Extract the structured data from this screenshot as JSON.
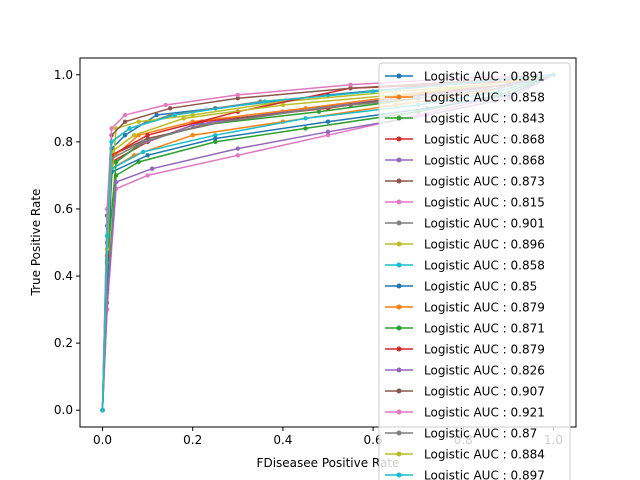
{
  "chart_data": {
    "type": "line",
    "title": "",
    "xlabel": "FDiseasee Positive Rate",
    "ylabel": "True Positive Rate",
    "xlim": [
      -0.05,
      1.05
    ],
    "ylim": [
      -0.05,
      1.05
    ],
    "x_ticks": [
      "0.0",
      "0.2",
      "0.4",
      "0.6",
      "0.8",
      "1.0"
    ],
    "y_ticks": [
      "0.0",
      "0.2",
      "0.4",
      "0.6",
      "0.8",
      "1.0"
    ],
    "grid": false,
    "legend_position": "right (overflowing bottom)",
    "series": [
      {
        "name": "Logistic AUC : 0.891",
        "color": "#1f77b4",
        "points": [
          [
            0,
            0
          ],
          [
            0.01,
            0.45
          ],
          [
            0.02,
            0.78
          ],
          [
            0.05,
            0.82
          ],
          [
            0.12,
            0.88
          ],
          [
            0.25,
            0.9
          ],
          [
            0.5,
            0.94
          ],
          [
            0.75,
            0.97
          ],
          [
            1,
            1
          ]
        ]
      },
      {
        "name": "Logistic AUC : 0.858",
        "color": "#ff7f0e",
        "points": [
          [
            0,
            0
          ],
          [
            0.01,
            0.3
          ],
          [
            0.02,
            0.72
          ],
          [
            0.07,
            0.76
          ],
          [
            0.2,
            0.82
          ],
          [
            0.4,
            0.86
          ],
          [
            0.65,
            0.91
          ],
          [
            0.85,
            0.95
          ],
          [
            1,
            1
          ]
        ]
      },
      {
        "name": "Logistic AUC : 0.843",
        "color": "#2ca02c",
        "points": [
          [
            0,
            0
          ],
          [
            0.01,
            0.35
          ],
          [
            0.03,
            0.7
          ],
          [
            0.08,
            0.74
          ],
          [
            0.25,
            0.8
          ],
          [
            0.45,
            0.84
          ],
          [
            0.7,
            0.89
          ],
          [
            0.88,
            0.94
          ],
          [
            1,
            1
          ]
        ]
      },
      {
        "name": "Logistic AUC : 0.868",
        "color": "#d62728",
        "points": [
          [
            0,
            0
          ],
          [
            0.01,
            0.4
          ],
          [
            0.02,
            0.74
          ],
          [
            0.1,
            0.8
          ],
          [
            0.22,
            0.86
          ],
          [
            0.5,
            0.9
          ],
          [
            0.7,
            0.94
          ],
          [
            0.9,
            0.97
          ],
          [
            1,
            1
          ]
        ]
      },
      {
        "name": "Logistic AUC : 0.868",
        "color": "#9467bd",
        "points": [
          [
            0,
            0
          ],
          [
            0.01,
            0.42
          ],
          [
            0.02,
            0.73
          ],
          [
            0.08,
            0.79
          ],
          [
            0.2,
            0.85
          ],
          [
            0.4,
            0.89
          ],
          [
            0.65,
            0.93
          ],
          [
            0.85,
            0.96
          ],
          [
            1,
            1
          ]
        ]
      },
      {
        "name": "Logistic AUC : 0.873",
        "color": "#8c564b",
        "points": [
          [
            0,
            0
          ],
          [
            0.01,
            0.5
          ],
          [
            0.02,
            0.76
          ],
          [
            0.1,
            0.81
          ],
          [
            0.3,
            0.87
          ],
          [
            0.55,
            0.91
          ],
          [
            0.75,
            0.95
          ],
          [
            0.9,
            0.97
          ],
          [
            1,
            1
          ]
        ]
      },
      {
        "name": "Logistic AUC : 0.815",
        "color": "#e377c2",
        "points": [
          [
            0,
            0
          ],
          [
            0.01,
            0.3
          ],
          [
            0.03,
            0.66
          ],
          [
            0.1,
            0.7
          ],
          [
            0.3,
            0.76
          ],
          [
            0.5,
            0.82
          ],
          [
            0.7,
            0.88
          ],
          [
            0.9,
            0.94
          ],
          [
            1,
            1
          ]
        ]
      },
      {
        "name": "Logistic AUC : 0.901",
        "color": "#7f7f7f",
        "points": [
          [
            0,
            0
          ],
          [
            0.01,
            0.55
          ],
          [
            0.02,
            0.8
          ],
          [
            0.06,
            0.84
          ],
          [
            0.15,
            0.88
          ],
          [
            0.35,
            0.92
          ],
          [
            0.6,
            0.95
          ],
          [
            0.85,
            0.98
          ],
          [
            1,
            1
          ]
        ]
      },
      {
        "name": "Logistic AUC : 0.896",
        "color": "#bcbd22",
        "points": [
          [
            0,
            0
          ],
          [
            0.01,
            0.52
          ],
          [
            0.03,
            0.84
          ],
          [
            0.08,
            0.86
          ],
          [
            0.2,
            0.88
          ],
          [
            0.4,
            0.92
          ],
          [
            0.65,
            0.95
          ],
          [
            0.85,
            0.97
          ],
          [
            1,
            1
          ]
        ]
      },
      {
        "name": "Logistic AUC : 0.858",
        "color": "#17becf",
        "points": [
          [
            0,
            0
          ],
          [
            0.01,
            0.38
          ],
          [
            0.02,
            0.72
          ],
          [
            0.09,
            0.77
          ],
          [
            0.25,
            0.82
          ],
          [
            0.45,
            0.87
          ],
          [
            0.7,
            0.91
          ],
          [
            0.88,
            0.95
          ],
          [
            1,
            1
          ]
        ]
      },
      {
        "name": "Logistic AUC : 0.85",
        "color": "#1f77b4",
        "points": [
          [
            0,
            0
          ],
          [
            0.01,
            0.36
          ],
          [
            0.02,
            0.71
          ],
          [
            0.1,
            0.76
          ],
          [
            0.25,
            0.81
          ],
          [
            0.5,
            0.86
          ],
          [
            0.72,
            0.9
          ],
          [
            0.9,
            0.94
          ],
          [
            1,
            1
          ]
        ]
      },
      {
        "name": "Logistic AUC : 0.879",
        "color": "#ff7f0e",
        "points": [
          [
            0,
            0
          ],
          [
            0.01,
            0.46
          ],
          [
            0.02,
            0.75
          ],
          [
            0.08,
            0.82
          ],
          [
            0.2,
            0.86
          ],
          [
            0.45,
            0.9
          ],
          [
            0.68,
            0.94
          ],
          [
            0.85,
            0.97
          ],
          [
            1,
            1
          ]
        ]
      },
      {
        "name": "Logistic AUC : 0.871",
        "color": "#2ca02c",
        "points": [
          [
            0,
            0
          ],
          [
            0.01,
            0.44
          ],
          [
            0.03,
            0.74
          ],
          [
            0.09,
            0.8
          ],
          [
            0.22,
            0.85
          ],
          [
            0.48,
            0.89
          ],
          [
            0.7,
            0.93
          ],
          [
            0.88,
            0.96
          ],
          [
            1,
            1
          ]
        ]
      },
      {
        "name": "Logistic AUC : 0.879",
        "color": "#d62728",
        "points": [
          [
            0,
            0
          ],
          [
            0.01,
            0.46
          ],
          [
            0.02,
            0.76
          ],
          [
            0.1,
            0.82
          ],
          [
            0.3,
            0.89
          ],
          [
            0.55,
            0.96
          ],
          [
            0.75,
            0.97
          ],
          [
            0.9,
            0.98
          ],
          [
            1,
            1
          ]
        ]
      },
      {
        "name": "Logistic AUC : 0.826",
        "color": "#9467bd",
        "points": [
          [
            0,
            0
          ],
          [
            0.01,
            0.32
          ],
          [
            0.03,
            0.68
          ],
          [
            0.11,
            0.72
          ],
          [
            0.3,
            0.78
          ],
          [
            0.5,
            0.83
          ],
          [
            0.72,
            0.88
          ],
          [
            0.9,
            0.93
          ],
          [
            1,
            1
          ]
        ]
      },
      {
        "name": "Logistic AUC : 0.907",
        "color": "#8c564b",
        "points": [
          [
            0,
            0
          ],
          [
            0.01,
            0.58
          ],
          [
            0.02,
            0.82
          ],
          [
            0.05,
            0.86
          ],
          [
            0.15,
            0.9
          ],
          [
            0.3,
            0.93
          ],
          [
            0.55,
            0.96
          ],
          [
            0.8,
            0.98
          ],
          [
            1,
            1
          ]
        ]
      },
      {
        "name": "Logistic AUC : 0.921",
        "color": "#e377c2",
        "points": [
          [
            0,
            0
          ],
          [
            0.01,
            0.6
          ],
          [
            0.02,
            0.84
          ],
          [
            0.05,
            0.88
          ],
          [
            0.14,
            0.91
          ],
          [
            0.3,
            0.94
          ],
          [
            0.55,
            0.97
          ],
          [
            0.8,
            0.99
          ],
          [
            1,
            1
          ]
        ]
      },
      {
        "name": "Logistic AUC : 0.87",
        "color": "#7f7f7f",
        "points": [
          [
            0,
            0
          ],
          [
            0.01,
            0.44
          ],
          [
            0.02,
            0.75
          ],
          [
            0.09,
            0.8
          ],
          [
            0.22,
            0.85
          ],
          [
            0.48,
            0.9
          ],
          [
            0.7,
            0.93
          ],
          [
            0.88,
            0.96
          ],
          [
            1,
            1
          ]
        ]
      },
      {
        "name": "Logistic AUC : 0.884",
        "color": "#bcbd22",
        "points": [
          [
            0,
            0
          ],
          [
            0.01,
            0.48
          ],
          [
            0.02,
            0.77
          ],
          [
            0.07,
            0.82
          ],
          [
            0.18,
            0.87
          ],
          [
            0.4,
            0.91
          ],
          [
            0.65,
            0.94
          ],
          [
            0.85,
            0.97
          ],
          [
            1,
            1
          ]
        ]
      },
      {
        "name": "Logistic AUC : 0.897",
        "color": "#17becf",
        "points": [
          [
            0,
            0
          ],
          [
            0.01,
            0.52
          ],
          [
            0.02,
            0.8
          ],
          [
            0.06,
            0.84
          ],
          [
            0.16,
            0.88
          ],
          [
            0.36,
            0.92
          ],
          [
            0.6,
            0.95
          ],
          [
            0.84,
            0.98
          ],
          [
            1,
            1
          ]
        ]
      }
    ]
  }
}
